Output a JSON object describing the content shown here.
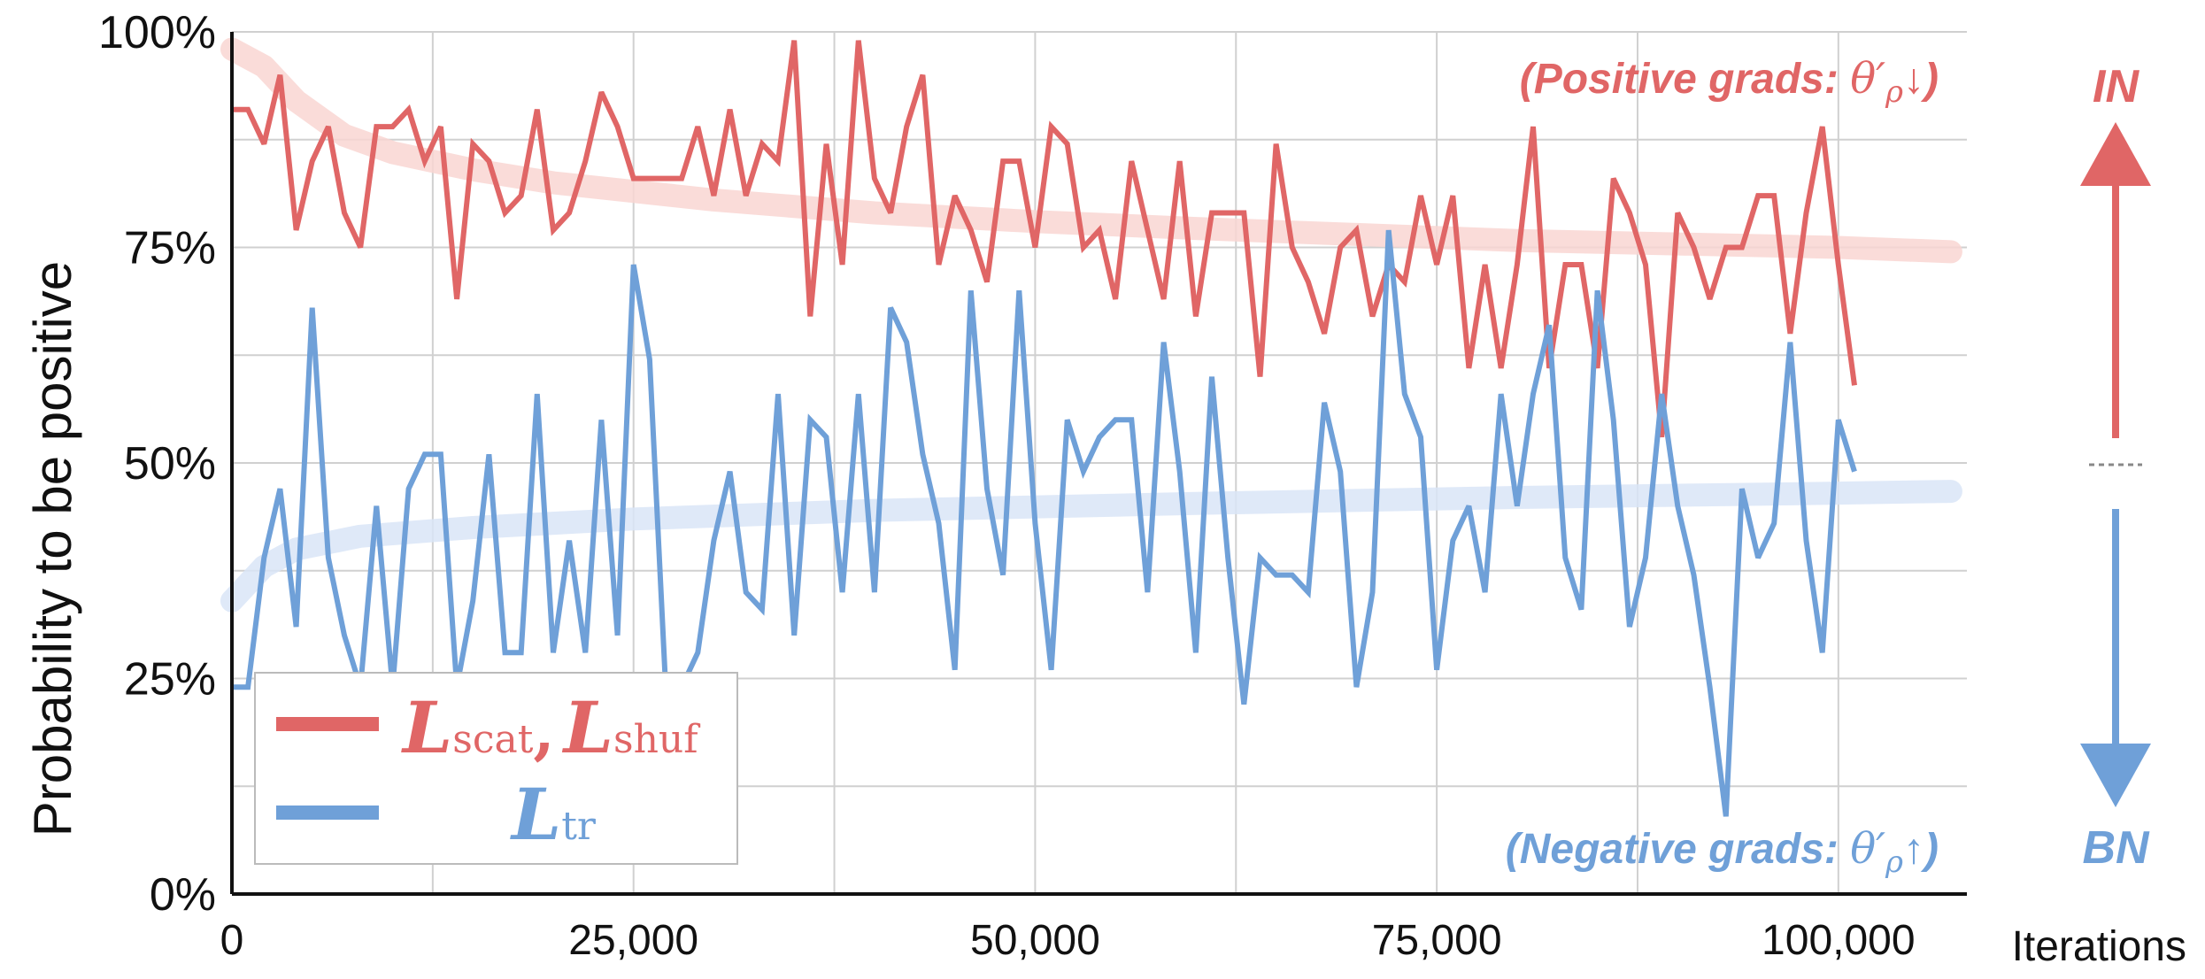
{
  "chart_data": {
    "type": "line",
    "ylabel": "Probability to be positive",
    "xlabel": "Iterations",
    "xlim": [
      0,
      108000
    ],
    "ylim": [
      0,
      100
    ],
    "x_ticks": [
      0,
      25000,
      50000,
      75000,
      100000
    ],
    "x_tick_labels": [
      "0",
      "25,000",
      "50,000",
      "75,000",
      "100,000"
    ],
    "y_ticks": [
      0,
      25,
      50,
      75,
      100
    ],
    "y_tick_labels": [
      "0%",
      "25%",
      "50%",
      "75%",
      "100%"
    ],
    "grid": true,
    "legend_position": "bottom-left",
    "series": [
      {
        "name": "L_scat, L_shuf",
        "legend_parts": [
          "L",
          "scat",
          ",",
          "L",
          "shuf"
        ],
        "color": "#e06666",
        "trend_color": "#f9d6d2",
        "x_step": 1000,
        "values": [
          91,
          91,
          87,
          95,
          77,
          85,
          89,
          79,
          75,
          89,
          89,
          91,
          85,
          89,
          69,
          87,
          85,
          79,
          81,
          91,
          77,
          79,
          85,
          93,
          89,
          83,
          83,
          83,
          83,
          89,
          81,
          91,
          81,
          87,
          85,
          99,
          67,
          87,
          73,
          99,
          83,
          79,
          89,
          95,
          73,
          81,
          77,
          71,
          85,
          85,
          75,
          89,
          87,
          75,
          77,
          69,
          85,
          77,
          69,
          85,
          67,
          79,
          79,
          79,
          60,
          87,
          75,
          71,
          65,
          75,
          77,
          67,
          73,
          71,
          81,
          73,
          81,
          61,
          73,
          61,
          73,
          89,
          61,
          73,
          73,
          61,
          83,
          79,
          73,
          53,
          79,
          75,
          69,
          75,
          75,
          81,
          81,
          65,
          79,
          89,
          73,
          59
        ],
        "trend": [
          [
            0,
            98
          ],
          [
            2000,
            96
          ],
          [
            4000,
            92
          ],
          [
            7000,
            88
          ],
          [
            10000,
            86
          ],
          [
            15000,
            84
          ],
          [
            20000,
            82.5
          ],
          [
            30000,
            80.5
          ],
          [
            40000,
            79
          ],
          [
            50000,
            78
          ],
          [
            60000,
            77.2
          ],
          [
            70000,
            76.5
          ],
          [
            80000,
            75.8
          ],
          [
            90000,
            75.4
          ],
          [
            100000,
            75
          ],
          [
            107000,
            74.5
          ]
        ]
      },
      {
        "name": "L_tr",
        "legend_parts": [
          "L",
          "tr"
        ],
        "color": "#6fa0d8",
        "trend_color": "#d9e5f7",
        "x_step": 1000,
        "values": [
          24,
          24,
          39,
          47,
          31,
          68,
          39,
          30,
          24,
          45,
          24,
          47,
          51,
          51,
          24,
          34,
          51,
          28,
          28,
          58,
          28,
          41,
          28,
          55,
          30,
          73,
          62,
          24,
          24,
          28,
          41,
          49,
          35,
          33,
          58,
          30,
          55,
          53,
          35,
          58,
          35,
          68,
          64,
          51,
          43,
          26,
          70,
          47,
          37,
          70,
          43,
          26,
          55,
          49,
          53,
          55,
          55,
          35,
          64,
          49,
          28,
          60,
          39,
          22,
          39,
          37,
          37,
          35,
          57,
          49,
          24,
          35,
          77,
          58,
          53,
          26,
          41,
          45,
          35,
          58,
          45,
          58,
          66,
          39,
          33,
          70,
          55,
          31,
          39,
          58,
          45,
          37,
          24,
          9,
          47,
          39,
          43,
          64,
          41,
          28,
          55,
          49
        ],
        "trend": [
          [
            0,
            34
          ],
          [
            2000,
            38
          ],
          [
            4000,
            40
          ],
          [
            8000,
            41.5
          ],
          [
            15000,
            42.5
          ],
          [
            25000,
            43.5
          ],
          [
            40000,
            44.5
          ],
          [
            60000,
            45.3
          ],
          [
            80000,
            46
          ],
          [
            100000,
            46.5
          ],
          [
            107000,
            46.7
          ]
        ]
      }
    ],
    "annotations": {
      "positive": {
        "prefix": "(Positive grads: ",
        "theta": "θ",
        "prime": "′",
        "rho": "ρ",
        "arrow": "↓",
        "suffix": ")"
      },
      "negative": {
        "prefix": "(Negative grads: ",
        "theta": "θ",
        "prime": "′",
        "rho": "ρ",
        "arrow": "↑",
        "suffix": ")"
      },
      "in_label": "IN",
      "bn_label": "BN"
    }
  }
}
